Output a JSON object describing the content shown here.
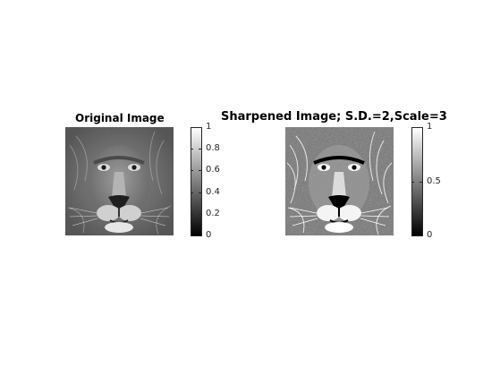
{
  "figure": {
    "panels": [
      {
        "title": "Original Image",
        "image_desc_icon": "lion-face-grayscale",
        "colorbar": {
          "colors": [
            "#000000",
            "#ffffff"
          ],
          "ticks": [
            "0",
            "0.2",
            "0.4",
            "0.6",
            "0.8",
            "1"
          ],
          "tick_values": [
            0,
            0.2,
            0.4,
            0.6,
            0.8,
            1
          ]
        }
      },
      {
        "title": "Sharpened Image; S.D.=2,Scale=3",
        "image_desc_icon": "lion-face-sharpened",
        "colorbar": {
          "colors": [
            "#000000",
            "#ffffff"
          ],
          "ticks": [
            "0",
            "0.5",
            "1"
          ],
          "tick_values": [
            0,
            0.5,
            1
          ]
        }
      }
    ]
  }
}
